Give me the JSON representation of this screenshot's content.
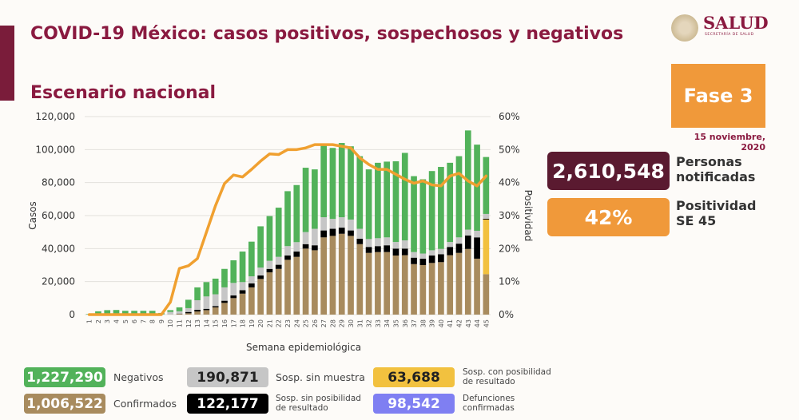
{
  "header": {
    "title": "COVID-19 México: casos positivos, sospechosos y negativos",
    "subtitle": "Escenario nacional",
    "logo_text": "SALUD",
    "logo_subtext": "SECRETARÍA DE SALUD",
    "phase": "Fase 3",
    "date": "15 noviembre, 2020"
  },
  "kpis": [
    {
      "value": "2,610,548",
      "label_line1": "Personas",
      "label_line2": "notificadas",
      "color": "#5a1a30"
    },
    {
      "value": "42%",
      "label_line1": "Positividad",
      "label_line2": "SE 45",
      "color": "#f0993a"
    }
  ],
  "legend": [
    {
      "value": "1,227,290",
      "label": "Negativos",
      "color": "#52b25a"
    },
    {
      "value": "1,006,522",
      "label": "Confirmados",
      "color": "#a88b5e"
    },
    {
      "value": "190,871",
      "label": "Sosp. sin muestra",
      "color": "#c6c6c6"
    },
    {
      "value": "122,177",
      "label_line1": "Sosp. sin posibilidad",
      "label_line2": "de resultado",
      "color": "#000000"
    },
    {
      "value": "63,688",
      "label_line1": "Sosp. con posibilidad",
      "label_line2": "de resultado",
      "color": "#f2c13f"
    },
    {
      "value": "98,542",
      "label_line1": "Defunciones",
      "label_line2": "confirmadas",
      "color": "#7f7ff2"
    }
  ],
  "chart_data": {
    "type": "bar",
    "stacked": true,
    "xlabel": "Semana epidemiológica",
    "ylabel": "Casos",
    "y2label": "Positividad",
    "ylim": [
      0,
      120000
    ],
    "y2lim": [
      0,
      60
    ],
    "yticks": [
      "0",
      "20,000",
      "40,000",
      "60,000",
      "80,000",
      "100,000",
      "120,000"
    ],
    "y2ticks": [
      "0%",
      "10%",
      "20%",
      "30%",
      "40%",
      "50%",
      "60%"
    ],
    "grid": true,
    "categories": [
      "1",
      "2",
      "3",
      "4",
      "5",
      "6",
      "7",
      "8",
      "9",
      "10",
      "11",
      "12",
      "13",
      "14",
      "15",
      "16",
      "17",
      "18",
      "19",
      "20",
      "21",
      "22",
      "23",
      "24",
      "25",
      "26",
      "27",
      "28",
      "29",
      "30",
      "31",
      "32",
      "33",
      "34",
      "35",
      "36",
      "37",
      "38",
      "39",
      "40",
      "41",
      "42",
      "43",
      "44",
      "45"
    ],
    "series": [
      {
        "key": "confirmados",
        "color": "#a88b5e",
        "values": [
          0,
          0,
          0,
          0,
          0,
          0,
          0,
          0,
          0,
          100,
          400,
          800,
          1900,
          2700,
          4400,
          7100,
          10000,
          12700,
          16500,
          21600,
          25600,
          27700,
          33200,
          35000,
          40000,
          39000,
          46800,
          47700,
          49000,
          47700,
          42700,
          37400,
          37900,
          37900,
          35800,
          36000,
          30600,
          30000,
          31300,
          31800,
          36000,
          37400,
          39800,
          33900,
          24500
        ]
      },
      {
        "key": "sosp_con_posibilidad",
        "color": "#f2c13f",
        "values": [
          0,
          0,
          0,
          0,
          0,
          0,
          0,
          0,
          0,
          0,
          0,
          0,
          0,
          0,
          0,
          0,
          0,
          0,
          0,
          0,
          0,
          0,
          0,
          0,
          0,
          0,
          0,
          0,
          0,
          0,
          0,
          0,
          0,
          0,
          0,
          0,
          0,
          0,
          0,
          0,
          0,
          0,
          0,
          0,
          33100
        ]
      },
      {
        "key": "sosp_sin_posibilidad",
        "color": "#000000",
        "values": [
          0,
          0,
          0,
          0,
          0,
          0,
          0,
          0,
          0,
          0,
          200,
          800,
          1000,
          800,
          800,
          1300,
          1600,
          2100,
          2400,
          2100,
          2100,
          2500,
          2600,
          3200,
          2700,
          3000,
          4200,
          4300,
          3700,
          3300,
          3300,
          3600,
          3600,
          4100,
          4200,
          4000,
          3900,
          3900,
          4500,
          4800,
          5000,
          5600,
          8100,
          12900,
          500
        ]
      },
      {
        "key": "sosp_sin_muestra",
        "color": "#c6c6c6",
        "values": [
          0,
          0,
          0,
          0,
          0,
          0,
          0,
          0,
          100,
          1500,
          1400,
          2300,
          5800,
          7500,
          7100,
          8100,
          7600,
          4900,
          4300,
          4800,
          4900,
          4800,
          5700,
          5700,
          7300,
          10000,
          8000,
          6000,
          6300,
          6600,
          6000,
          4800,
          4800,
          4800,
          4000,
          5000,
          3400,
          3100,
          3200,
          3200,
          3000,
          3800,
          3600,
          4000,
          2900
        ]
      },
      {
        "key": "negativos",
        "color": "#52b25a",
        "values": [
          300,
          2000,
          2700,
          2800,
          2300,
          2300,
          2300,
          2300,
          900,
          1100,
          2400,
          5100,
          7800,
          8700,
          9500,
          11200,
          13700,
          18500,
          21000,
          25000,
          27100,
          29800,
          33300,
          34600,
          39000,
          36000,
          44000,
          43000,
          45000,
          44400,
          44000,
          42200,
          45700,
          45900,
          48900,
          53000,
          46000,
          45000,
          48000,
          49700,
          48000,
          49200,
          60100,
          52200,
          34500
        ]
      }
    ],
    "line": {
      "key": "positividad",
      "axis": "right",
      "unit": "%",
      "color": "#f0a030",
      "values": [
        0,
        0,
        0,
        0,
        0,
        0,
        0,
        0,
        0,
        3.8,
        14,
        14.8,
        17,
        25,
        33,
        39.7,
        42.3,
        41.7,
        44,
        46.5,
        48.7,
        48.5,
        50,
        50,
        50.5,
        51.5,
        51.5,
        51.5,
        51,
        50.5,
        47.5,
        45.5,
        44,
        44,
        42.5,
        41,
        39.8,
        40.5,
        39.3,
        39,
        42,
        42.8,
        40.5,
        39,
        42
      ]
    }
  }
}
